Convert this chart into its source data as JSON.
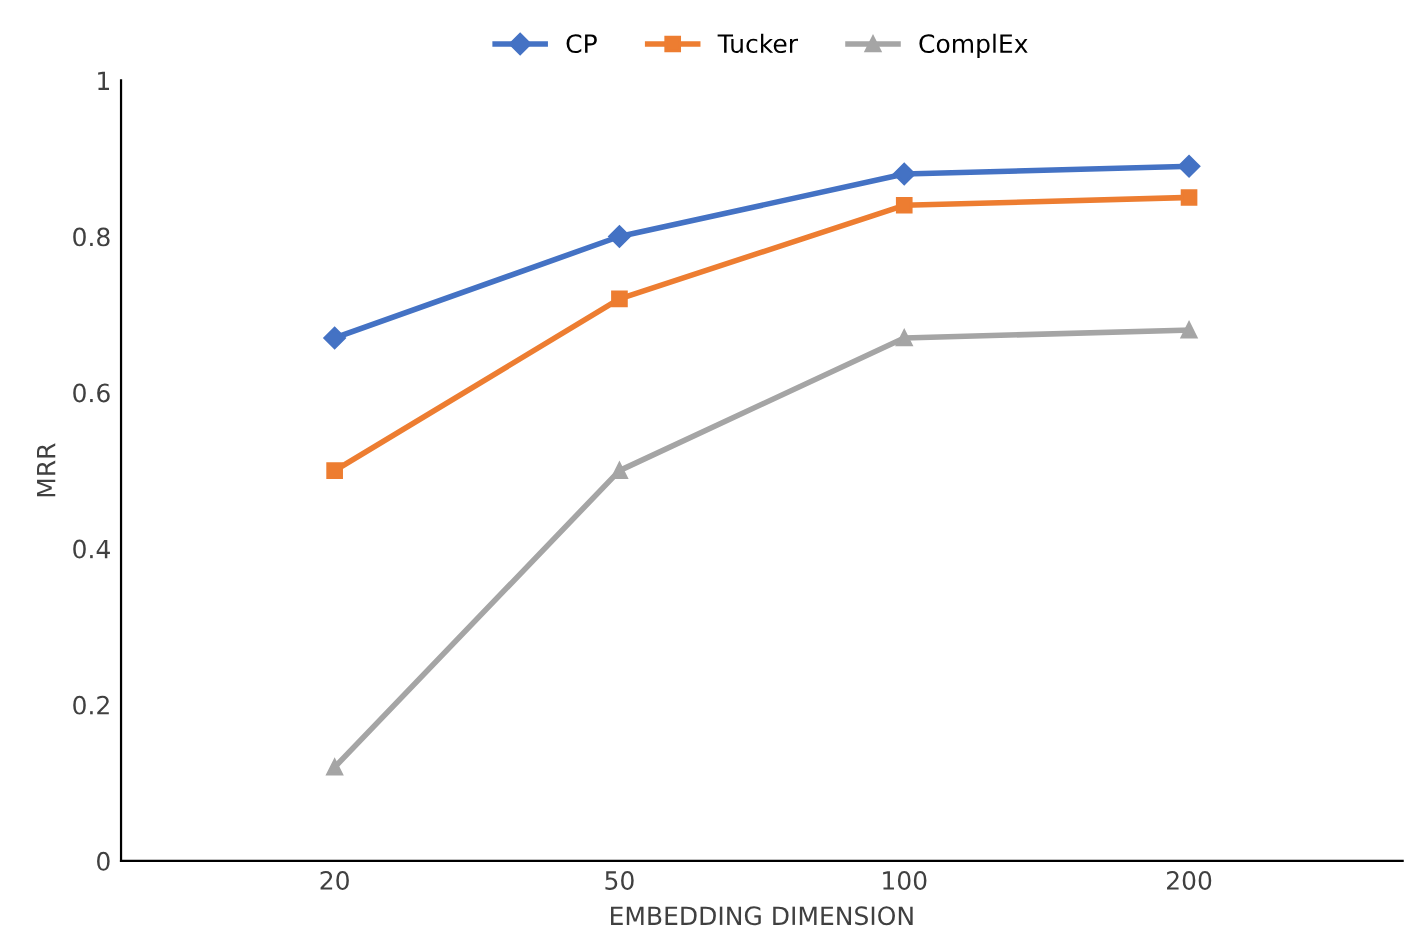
{
  "chart_data": {
    "type": "line",
    "xlabel": "EMBEDDING DIMENSION",
    "ylabel": "MRR",
    "categories": [
      "20",
      "50",
      "100",
      "200"
    ],
    "series": [
      {
        "name": "CP",
        "color": "#4472c4",
        "marker": "diamond",
        "values": [
          0.67,
          0.8,
          0.88,
          0.89
        ]
      },
      {
        "name": "Tucker",
        "color": "#ed7d31",
        "marker": "square",
        "values": [
          0.5,
          0.72,
          0.84,
          0.85
        ]
      },
      {
        "name": "ComplEx",
        "color": "#a5a5a5",
        "marker": "triangle",
        "values": [
          0.12,
          0.5,
          0.67,
          0.68
        ]
      }
    ],
    "ylim": [
      0,
      1
    ],
    "yticks": [
      0,
      0.2,
      0.4,
      0.6,
      0.8,
      1
    ],
    "grid": false,
    "legend": "top",
    "line_style": "solid"
  }
}
